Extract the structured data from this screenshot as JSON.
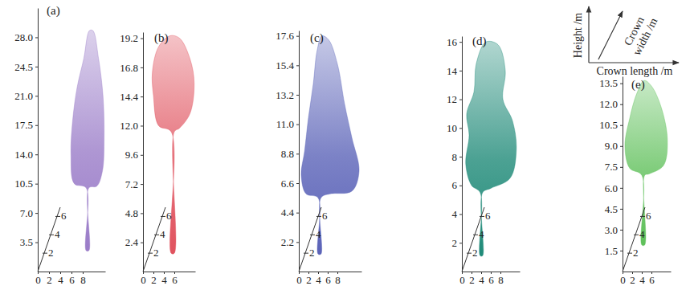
{
  "axis_key": {
    "y_label": "Height /m",
    "z_label": "Crown width /m",
    "x_label": "Crown length /m"
  },
  "chart_data": [
    {
      "type": "area",
      "title": "(a)",
      "color": "#9a7cc8",
      "x": [
        8.6,
        8.6,
        6.5,
        5.9,
        6.2,
        7.0,
        8.2,
        9.2,
        9.8,
        10.8,
        11.6,
        11.8,
        11.5,
        10.5,
        9.1,
        9.1
      ],
      "y": [
        2.5,
        10.0,
        10.5,
        14.0,
        18.0,
        22.0,
        25.5,
        28.8,
        28.8,
        25.5,
        21.0,
        16.0,
        12.0,
        10.2,
        10.0,
        2.5
      ],
      "xlim": [
        0,
        12
      ],
      "xticks": [
        0,
        2,
        4,
        6,
        8
      ],
      "ylim": [
        0,
        31.5
      ],
      "yticks": [
        3.5,
        {
          "value": 7,
          "label": "7.0"
        },
        10.5,
        {
          "value": 14,
          "label": "14.0"
        },
        17.5,
        {
          "value": 21,
          "label": "21.0"
        },
        24.5,
        {
          "value": 28,
          "label": "28.0"
        }
      ],
      "zlim": [
        0,
        7
      ],
      "zticks": [
        2,
        4,
        6
      ]
    },
    {
      "type": "area",
      "title": "(b)",
      "color": "#e0525e",
      "x": [
        5.4,
        5.4,
        3.0,
        2.0,
        1.8,
        3.0,
        5.2,
        7.0,
        9.0,
        9.8,
        9.0,
        7.0,
        6.0,
        6.0
      ],
      "y": [
        1.5,
        11.5,
        12.0,
        14.5,
        16.4,
        18.5,
        19.4,
        19.2,
        17.5,
        15.5,
        13.0,
        11.8,
        11.5,
        1.5
      ],
      "xlim": [
        0,
        10
      ],
      "xticks": [
        0,
        2,
        4,
        6
      ],
      "ylim": [
        0,
        19.7
      ],
      "yticks": [
        2.4,
        4.8,
        7.2,
        9.6,
        {
          "value": 12,
          "label": "12.0"
        },
        14.4,
        16.8,
        19.2
      ],
      "zlim": [
        0,
        7
      ],
      "zticks": [
        2,
        4,
        6
      ]
    },
    {
      "type": "area",
      "title": "(c)",
      "color": "#5b63b8",
      "x": [
        4.0,
        4.0,
        1.5,
        0.5,
        1.2,
        2.0,
        3.0,
        3.8,
        4.8,
        6.2,
        8.0,
        9.5,
        11.0,
        12.5,
        11.0,
        6.5,
        4.6,
        4.6
      ],
      "y": [
        1.3,
        5.5,
        5.8,
        7.2,
        9.0,
        11.5,
        14.0,
        16.5,
        17.6,
        17.3,
        15.5,
        12.5,
        10.0,
        7.5,
        6.0,
        5.8,
        5.5,
        1.3
      ],
      "xlim": [
        0,
        13
      ],
      "xticks": [
        0,
        2,
        4,
        6,
        8
      ],
      "ylim": [
        0,
        18
      ],
      "yticks": [
        2.2,
        4.4,
        6.6,
        8.8,
        {
          "value": 11,
          "label": "11.0"
        },
        13.2,
        15.4,
        17.6
      ],
      "zlim": [
        0,
        7
      ],
      "zticks": [
        2,
        4,
        6
      ]
    },
    {
      "type": "area",
      "title": "(d)",
      "color": "#1f8a78",
      "x": [
        3.8,
        3.8,
        2.0,
        0.8,
        1.5,
        1.0,
        2.5,
        3.0,
        5.0,
        7.5,
        9.0,
        8.5,
        10.5,
        11.3,
        10.0,
        6.0,
        4.3,
        4.3
      ],
      "y": [
        1.1,
        5.5,
        6.0,
        7.5,
        9.5,
        11.0,
        12.5,
        14.5,
        16.0,
        15.8,
        14.0,
        12.0,
        10.5,
        8.5,
        6.5,
        5.8,
        5.5,
        1.1
      ],
      "xlim": [
        0,
        12
      ],
      "xticks": [
        0,
        2,
        4,
        6,
        8
      ],
      "ylim": [
        0,
        16.4
      ],
      "yticks": [
        2,
        4,
        6,
        8,
        10,
        12,
        14,
        16
      ],
      "zlim": [
        0,
        7
      ],
      "zticks": [
        2,
        4,
        6
      ]
    },
    {
      "type": "area",
      "title": "(e)",
      "color": "#5fc05a",
      "x": [
        4.0,
        4.0,
        1.5,
        0.5,
        1.5,
        3.0,
        4.5,
        6.0,
        8.0,
        9.3,
        8.5,
        5.5,
        4.6,
        4.6
      ],
      "y": [
        1.9,
        6.9,
        7.4,
        9.0,
        11.0,
        12.8,
        13.7,
        13.3,
        11.8,
        9.5,
        7.6,
        7.0,
        6.9,
        1.9
      ],
      "xlim": [
        0,
        10
      ],
      "xticks": [
        0,
        2,
        4,
        6
      ],
      "ylim": [
        0,
        14
      ],
      "yticks": [
        1.5,
        {
          "value": 3,
          "label": "3.0"
        },
        4.5,
        {
          "value": 6,
          "label": "6.0"
        },
        7.5,
        {
          "value": 9,
          "label": "9.0"
        },
        10.5,
        {
          "value": 12,
          "label": "12.0"
        },
        13.5
      ],
      "zlim": [
        0,
        7
      ],
      "zticks": [
        2,
        4,
        6
      ]
    }
  ]
}
